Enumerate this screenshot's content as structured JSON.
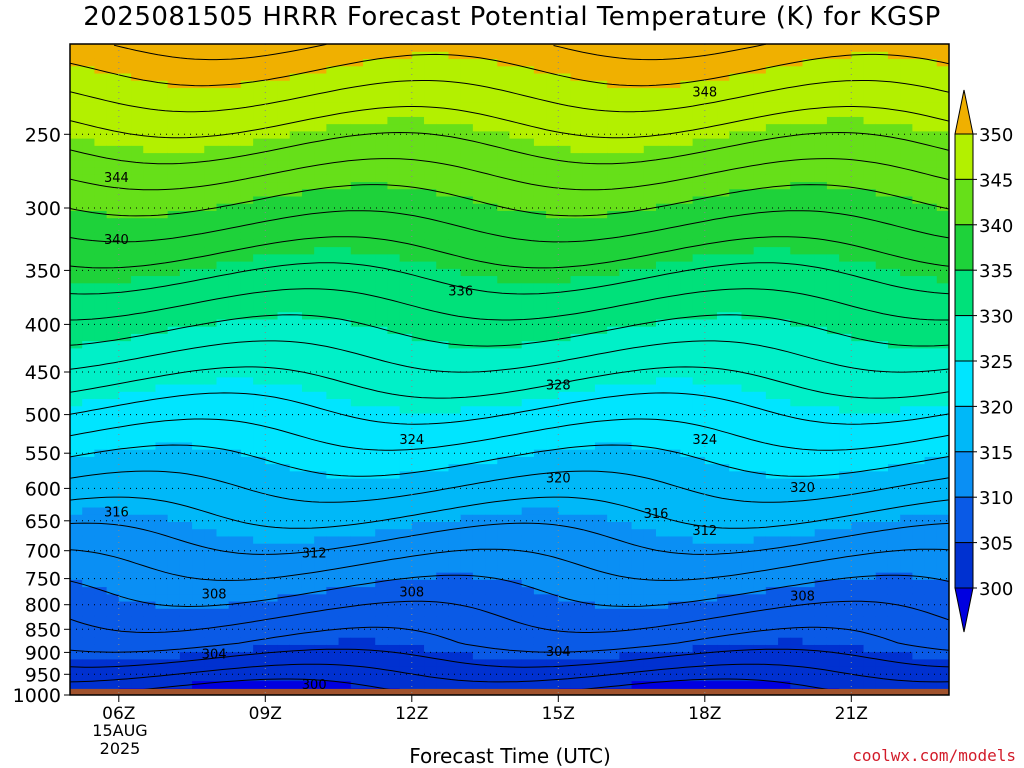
{
  "chart_data": {
    "type": "contour",
    "title": "2025081505 HRRR Forecast Potential Temperature (K) for KGSP",
    "xlabel": "Forecast Time (UTC)",
    "x_ticks": [
      "06Z",
      "09Z",
      "12Z",
      "15Z",
      "18Z",
      "21Z"
    ],
    "x_date_lines": [
      "15AUG",
      "2025"
    ],
    "x_range_hours": [
      5,
      23
    ],
    "ylabel": "",
    "y_ticks": [
      250,
      300,
      350,
      400,
      450,
      500,
      550,
      600,
      650,
      700,
      750,
      800,
      850,
      900,
      950,
      1000
    ],
    "y_axis_pressure_hpa": [
      1000,
      200
    ],
    "y_scale": "log-pressure, inverted",
    "colorbar": {
      "levels": [
        300,
        305,
        310,
        315,
        320,
        325,
        330,
        335,
        340,
        345,
        350
      ],
      "colors": [
        "#0031d0",
        "#0a5ae6",
        "#0a8ff4",
        "#00b8f8",
        "#00e5ff",
        "#00f0c8",
        "#00e17a",
        "#1ed23a",
        "#66e019",
        "#b3f000",
        "#f7ee00",
        "#f0b000"
      ],
      "under_color": "#0000e0",
      "over_color": "#f0b000"
    },
    "contour_labels": [
      {
        "value": 348,
        "hour": 18.0,
        "pressure": 225
      },
      {
        "value": 344,
        "hour": 5.95,
        "pressure": 278
      },
      {
        "value": 340,
        "hour": 5.95,
        "pressure": 324
      },
      {
        "value": 336,
        "hour": 13.0,
        "pressure": 368
      },
      {
        "value": 328,
        "hour": 15.0,
        "pressure": 464
      },
      {
        "value": 324,
        "hour": 12.0,
        "pressure": 531
      },
      {
        "value": 324,
        "hour": 18.0,
        "pressure": 531
      },
      {
        "value": 320,
        "hour": 15.0,
        "pressure": 584
      },
      {
        "value": 320,
        "hour": 20.0,
        "pressure": 598
      },
      {
        "value": 316,
        "hour": 5.95,
        "pressure": 635
      },
      {
        "value": 316,
        "hour": 17.0,
        "pressure": 638
      },
      {
        "value": 312,
        "hour": 10.0,
        "pressure": 703
      },
      {
        "value": 312,
        "hour": 18.0,
        "pressure": 665
      },
      {
        "value": 308,
        "hour": 7.95,
        "pressure": 778
      },
      {
        "value": 308,
        "hour": 12.0,
        "pressure": 774
      },
      {
        "value": 308,
        "hour": 20.0,
        "pressure": 782
      },
      {
        "value": 304,
        "hour": 7.95,
        "pressure": 903
      },
      {
        "value": 304,
        "hour": 15.0,
        "pressure": 897
      },
      {
        "value": 300,
        "hour": 10.0,
        "pressure": 973
      }
    ],
    "ground_color": "#a0522d",
    "grid": "dotted"
  },
  "credit": "coolwx.com/models"
}
